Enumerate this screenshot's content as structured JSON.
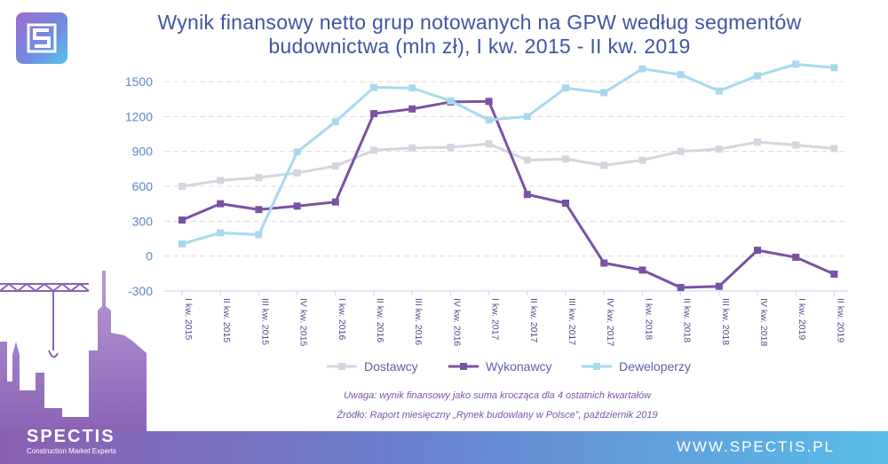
{
  "title_line1": "Wynik finansowy netto grup notowanych na GPW według segmentów",
  "title_line2": "budownictwa (mln zł), I kw. 2015 - II kw. 2019",
  "note": "Uwaga: wynik finansowy jako suma krocząca dla 4 ostatnich kwartałów",
  "source": "Źródło: Raport miesięczny „Rynek budowlany w Polsce”, październik 2019",
  "brand": {
    "name": "SPECTIS",
    "tagline": "Construction Market Experts",
    "url": "WWW.SPECTIS.PL"
  },
  "colors": {
    "title": "#3f55a5",
    "note": "#7a55a8",
    "Dostawcy": "#d3d6de",
    "Wykonawcy": "#7a52a4",
    "Deweloperzy": "#a7d9ee"
  },
  "chart_data": {
    "type": "line",
    "categories": [
      "I kw. 2015",
      "II kw. 2015",
      "III kw. 2015",
      "IV kw. 2015",
      "I kw. 2016",
      "II kw. 2016",
      "III kw. 2016",
      "IV kw. 2016",
      "I kw. 2017",
      "II kw. 2017",
      "III kw. 2017",
      "IV kw. 2017",
      "I kw. 2018",
      "II kw. 2018",
      "III kw. 2018",
      "IV kw. 2018",
      "I kw. 2019",
      "II kw. 2019"
    ],
    "yticks": [
      -300,
      0,
      300,
      600,
      900,
      1200,
      1500
    ],
    "ylim": [
      -300,
      1500
    ],
    "grid": true,
    "legend": "bottom",
    "series": [
      {
        "name": "Dostawcy",
        "values": [
          600,
          650,
          675,
          715,
          775,
          910,
          930,
          935,
          965,
          825,
          835,
          780,
          825,
          900,
          920,
          980,
          955,
          925
        ]
      },
      {
        "name": "Wykonawcy",
        "values": [
          310,
          450,
          400,
          430,
          465,
          1225,
          1265,
          1325,
          1330,
          530,
          455,
          -60,
          -120,
          -270,
          -260,
          50,
          -10,
          -155
        ]
      },
      {
        "name": "Deweloperzy",
        "values": [
          105,
          200,
          185,
          895,
          1155,
          1450,
          1445,
          1335,
          1170,
          1200,
          1445,
          1405,
          1610,
          1560,
          1420,
          1550,
          1650,
          1620
        ]
      }
    ]
  }
}
